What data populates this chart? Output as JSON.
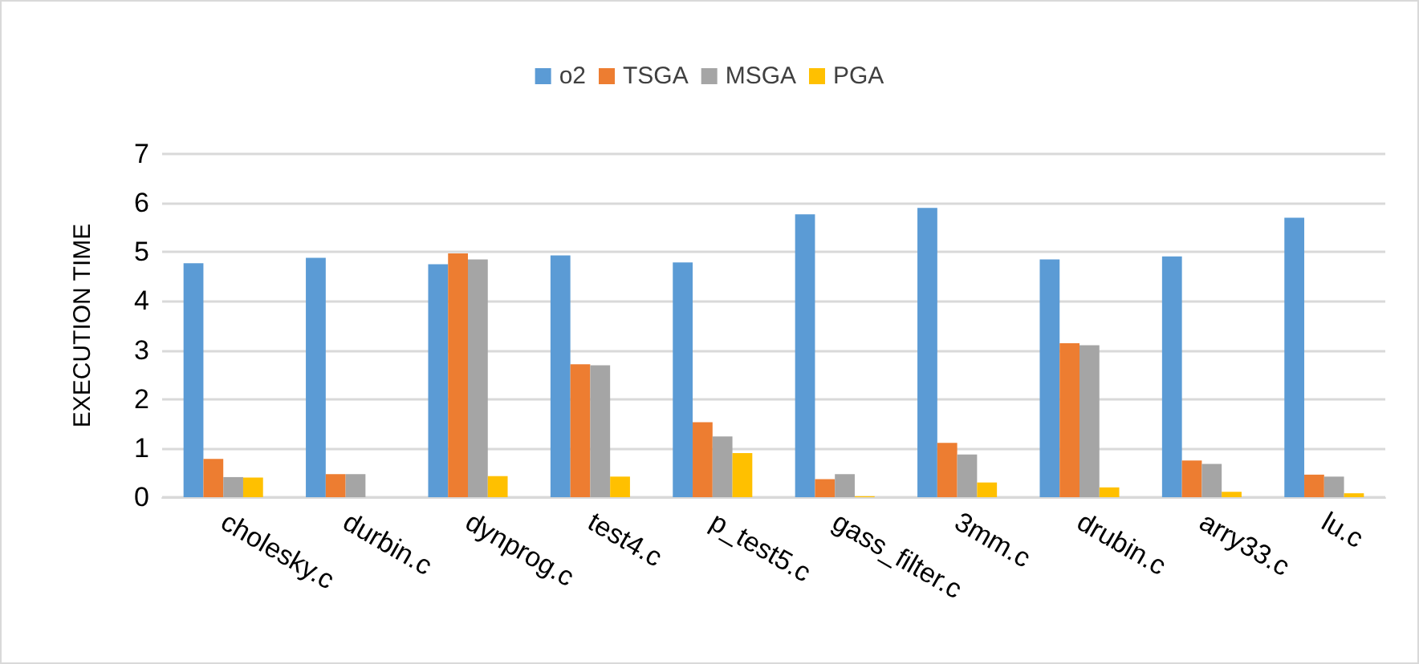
{
  "chart_data": {
    "type": "bar",
    "ylabel": "EXECUTION TIME",
    "categories": [
      "cholesky.c",
      "durbin.c",
      "dynprog.c",
      "test4.c",
      "p_test5.c",
      "gass_filter.c",
      "3mm.c",
      "drubin.c",
      "arry33.c",
      "lu.c"
    ],
    "series": [
      {
        "name": "o2",
        "color": "#5b9bd5",
        "values": [
          4.77,
          4.88,
          4.75,
          4.93,
          4.79,
          5.77,
          5.9,
          4.85,
          4.91,
          5.7
        ]
      },
      {
        "name": "TSGA",
        "color": "#ed7d31",
        "values": [
          0.78,
          0.47,
          4.97,
          2.71,
          1.53,
          0.37,
          1.11,
          3.14,
          0.75,
          0.46
        ]
      },
      {
        "name": "MSGA",
        "color": "#a5a5a5",
        "values": [
          0.41,
          0.47,
          4.85,
          2.69,
          1.24,
          0.47,
          0.87,
          3.1,
          0.68,
          0.42
        ]
      },
      {
        "name": "PGA",
        "color": "#ffc000",
        "values": [
          0.4,
          0,
          0.43,
          0.42,
          0.9,
          0.02,
          0.3,
          0.2,
          0.11,
          0.08
        ]
      }
    ],
    "ylim": [
      0,
      7
    ],
    "yticks": [
      0,
      1,
      2,
      3,
      4,
      5,
      6,
      7
    ],
    "grid": "y",
    "legend": "top"
  }
}
